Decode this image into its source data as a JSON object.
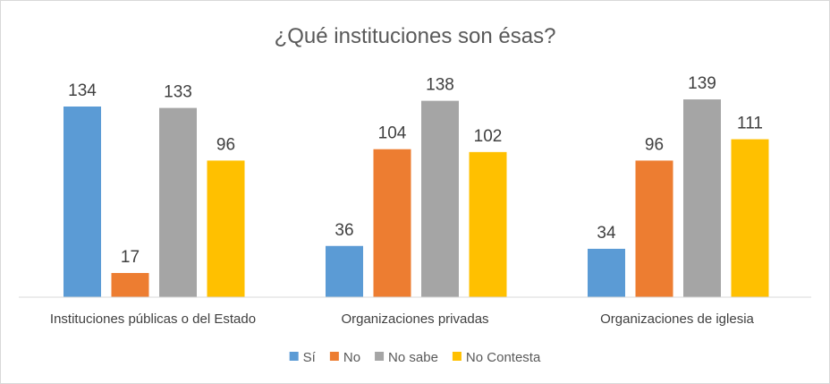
{
  "chart_data": {
    "type": "bar",
    "title": "¿Qué instituciones son ésas?",
    "categories": [
      "Instituciones públicas o del Estado",
      "Organizaciones privadas",
      "Organizaciones de iglesia"
    ],
    "series": [
      {
        "name": "Sí",
        "color": "#5b9bd5",
        "values": [
          134,
          36,
          34
        ]
      },
      {
        "name": "No",
        "color": "#ed7d31",
        "values": [
          17,
          104,
          96
        ]
      },
      {
        "name": "No sabe",
        "color": "#a5a5a5",
        "values": [
          133,
          138,
          139
        ]
      },
      {
        "name": "No Contesta",
        "color": "#ffc000",
        "values": [
          96,
          102,
          111
        ]
      }
    ],
    "ylim": [
      0,
      160
    ],
    "xlabel": "",
    "ylabel": "",
    "grid": false,
    "legend_position": "bottom"
  }
}
